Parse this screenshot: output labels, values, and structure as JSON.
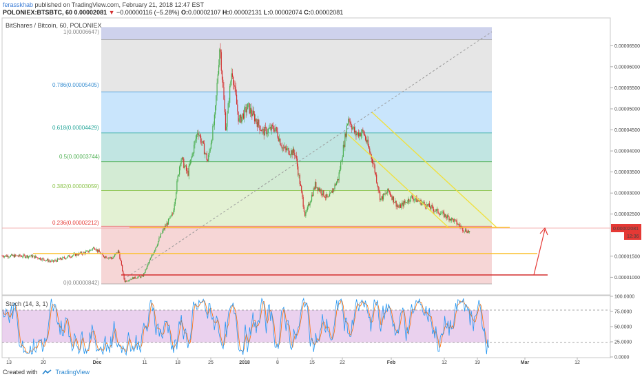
{
  "header": {
    "user": "ferasskhab",
    "published": " published on TradingView.com, February 21, 2018 12:47 EST",
    "symbol": "POLONIEX:BTSBTC, 60",
    "last": "0.00002081",
    "change": "−0.00000116 (−5.28%)",
    "o_label": "O:",
    "o": "0.00002107",
    "h_label": "H:",
    "h": "0.00002131",
    "l_label": "L:",
    "l": "0.00002074",
    "c_label": "C:",
    "c": "0.00002081"
  },
  "chart_title": "BitShares / Bitcoin, 60, POLONIEX",
  "stoch_label": "Stoch (14, 3, 1)",
  "footer": {
    "created_with": "Created with",
    "brand": "TradingView"
  },
  "colors": {
    "up": "#4caf50",
    "down": "#d32f2f",
    "stoch_k": "#2196f3",
    "stoch_d": "#ff6d00",
    "arrow": "#e53935"
  },
  "chart_data": [
    {
      "type": "candlestick",
      "title": "BitShares / Bitcoin, 60, POLONIEX",
      "x_ticks": [
        "13",
        "20",
        "Dec",
        "11",
        "18",
        "25",
        "2018",
        "8",
        "15",
        "22",
        "Feb",
        "12",
        "19",
        "Mar",
        "12"
      ],
      "y_ticks": [
        "0.00006500",
        "0.00006000",
        "0.00005500",
        "0.00005000",
        "0.00004500",
        "0.00004000",
        "0.00003500",
        "0.00003000",
        "0.00002500",
        "0.00001500",
        "0.00001000"
      ],
      "ylim": [
        5.8e-06,
        7.16e-05
      ],
      "last_price_label": "0.00002081",
      "countdown": "12:36",
      "price_path": [
        [
          0,
          1.51e-05
        ],
        [
          3,
          1.5e-05
        ],
        [
          5,
          1.37e-05
        ],
        [
          7,
          1.52e-05
        ],
        [
          8.5,
          1.6e-05
        ],
        [
          9.2,
          1.71e-05
        ],
        [
          10,
          1.51e-05
        ],
        [
          11,
          1.45e-05
        ],
        [
          11.6,
          1.63e-05
        ],
        [
          12.2,
          9e-06
        ],
        [
          13,
          9.8e-06
        ],
        [
          14,
          1.02e-05
        ],
        [
          15,
          1.55e-05
        ],
        [
          16,
          2.1e-05
        ],
        [
          17,
          2.5e-05
        ],
        [
          17.8,
          3.85e-05
        ],
        [
          18.5,
          3.45e-05
        ],
        [
          19.5,
          4.5e-05
        ],
        [
          20.5,
          3.75e-05
        ],
        [
          21.2,
          4.8e-05
        ],
        [
          21.7,
          6.55e-05
        ],
        [
          22.3,
          4.5e-05
        ],
        [
          22.9,
          5.95e-05
        ],
        [
          23.6,
          4.7e-05
        ],
        [
          24.5,
          5.05e-05
        ],
        [
          26,
          4.45e-05
        ],
        [
          27.2,
          4.55e-05
        ],
        [
          28,
          4.05e-05
        ],
        [
          29.2,
          3.95e-05
        ],
        [
          30.2,
          2.45e-05
        ],
        [
          31.2,
          3.2e-05
        ],
        [
          32.5,
          2.85e-05
        ],
        [
          33.5,
          3.35e-05
        ],
        [
          34.5,
          4.8e-05
        ],
        [
          35.2,
          4.4e-05
        ],
        [
          36,
          4.45e-05
        ],
        [
          37,
          3.7e-05
        ],
        [
          37.7,
          2.85e-05
        ],
        [
          38.5,
          3.05e-05
        ],
        [
          39.5,
          2.65e-05
        ],
        [
          40.8,
          2.9e-05
        ],
        [
          42,
          2.75e-05
        ],
        [
          43.5,
          2.55e-05
        ],
        [
          45,
          2.35e-05
        ],
        [
          46,
          2.13e-05
        ],
        [
          46.6,
          2.08e-05
        ]
      ],
      "fibonacci": [
        {
          "level": "1",
          "price": "0.00006647",
          "value": 6.647e-05
        },
        {
          "level": "0.786",
          "price": "0.00005405",
          "value": 5.405e-05
        },
        {
          "level": "0.618",
          "price": "0.00004429",
          "value": 4.429e-05
        },
        {
          "level": "0.5",
          "price": "0.00003744",
          "value": 3.744e-05
        },
        {
          "level": "0.382",
          "price": "0.00003059",
          "value": 3.059e-05
        },
        {
          "level": "0.236",
          "price": "0.00002212",
          "value": 2.212e-05
        },
        {
          "level": "0",
          "price": "0.00000842",
          "value": 8.42e-06
        }
      ]
    },
    {
      "type": "line",
      "title": "Stoch (14, 3, 1)",
      "y_ticks": [
        "100.0000",
        "75.0000",
        "50.0000",
        "25.0000",
        "0.0000"
      ],
      "ylim": [
        0,
        100
      ],
      "band": [
        20,
        80
      ]
    }
  ]
}
